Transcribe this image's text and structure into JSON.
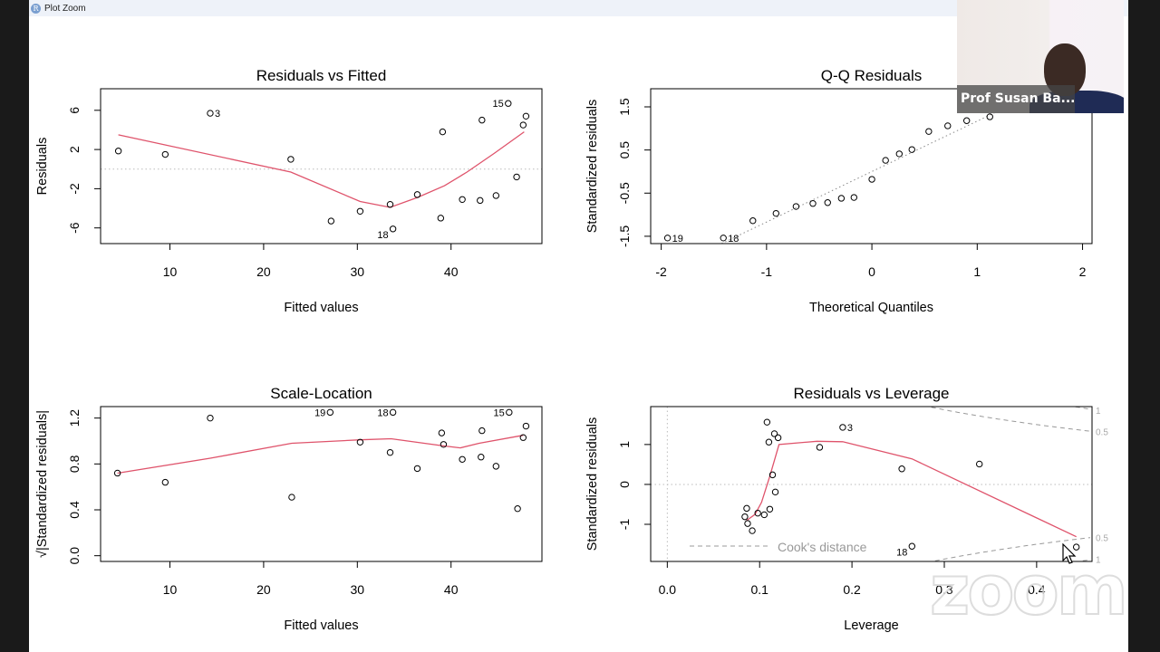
{
  "window": {
    "title": "Plot Zoom",
    "app_icon": "R-logo"
  },
  "video_overlay": {
    "participant_name": "Prof Susan Ba...",
    "watermark": "zoom"
  },
  "colors": {
    "points": "#000000",
    "smooth": "#df536b",
    "reference": "#999999",
    "cooks": "#999999"
  },
  "chart_data": [
    {
      "type": "scatter",
      "title": "Residuals vs Fitted",
      "xlabel": "Fitted values",
      "ylabel": "Residuals",
      "xlim": [
        2.6,
        49.7
      ],
      "ylim": [
        -7.6,
        8.2
      ],
      "xticks": [
        {
          "v": 10,
          "label": "10"
        },
        {
          "v": 20,
          "label": "20"
        },
        {
          "v": 30,
          "label": "30"
        },
        {
          "v": 40,
          "label": "40"
        }
      ],
      "yticks": [
        {
          "v": -6,
          "label": "-6"
        },
        {
          "v": -2,
          "label": "-2"
        },
        {
          "v": 2,
          "label": "2"
        },
        {
          "v": 6,
          "label": "6"
        }
      ],
      "points": [
        [
          4.5,
          1.85
        ],
        [
          9.5,
          1.5
        ],
        [
          14.3,
          5.7
        ],
        [
          22.9,
          1.0
        ],
        [
          27.2,
          -5.3
        ],
        [
          30.3,
          -4.3
        ],
        [
          33.5,
          -3.6
        ],
        [
          33.8,
          -6.1
        ],
        [
          36.4,
          -2.6
        ],
        [
          39.1,
          3.8
        ],
        [
          38.9,
          -5.0
        ],
        [
          41.2,
          -3.1
        ],
        [
          43.1,
          -3.2
        ],
        [
          43.3,
          5.0
        ],
        [
          44.8,
          -2.7
        ],
        [
          46.1,
          6.7
        ],
        [
          47.0,
          -0.8
        ],
        [
          47.7,
          4.5
        ],
        [
          48.0,
          5.4
        ]
      ],
      "point_labels": [
        {
          "x": 14.3,
          "y": 5.7,
          "label": "3",
          "side": "right"
        },
        {
          "x": 33.8,
          "y": -6.1,
          "label": "18",
          "side": "left"
        },
        {
          "x": 46.1,
          "y": 6.7,
          "label": "15",
          "side": "left"
        }
      ],
      "smooth": [
        [
          4.5,
          3.5
        ],
        [
          22.9,
          -0.3
        ],
        [
          30.3,
          -3.3
        ],
        [
          33.5,
          -3.9
        ],
        [
          36.4,
          -2.9
        ],
        [
          39.3,
          -1.7
        ],
        [
          41.7,
          -0.3
        ],
        [
          44.6,
          1.6
        ],
        [
          47.8,
          3.8
        ]
      ],
      "hline": 0
    },
    {
      "type": "scatter",
      "title": "Q-Q Residuals",
      "xlabel": "Theoretical Quantiles",
      "ylabel": "Standardized residuals",
      "xlim": [
        -2.1,
        2.09
      ],
      "ylim": [
        -1.67,
        1.92
      ],
      "xticks": [
        {
          "v": -2,
          "label": "-2"
        },
        {
          "v": -1,
          "label": "-1"
        },
        {
          "v": 0,
          "label": "0"
        },
        {
          "v": 1,
          "label": "1"
        },
        {
          "v": 2,
          "label": "2"
        }
      ],
      "yticks": [
        {
          "v": -1.5,
          "label": "-1.5"
        },
        {
          "v": -0.5,
          "label": "-0.5"
        },
        {
          "v": 0.5,
          "label": "0.5"
        },
        {
          "v": 1.5,
          "label": "1.5"
        }
      ],
      "points": [
        [
          -1.94,
          -1.54
        ],
        [
          -1.41,
          -1.54
        ],
        [
          -1.13,
          -1.14
        ],
        [
          -0.91,
          -0.97
        ],
        [
          -0.72,
          -0.81
        ],
        [
          -0.56,
          -0.74
        ],
        [
          -0.42,
          -0.72
        ],
        [
          -0.29,
          -0.62
        ],
        [
          -0.17,
          -0.6
        ],
        [
          0,
          -0.18
        ],
        [
          0.13,
          0.26
        ],
        [
          0.26,
          0.41
        ],
        [
          0.38,
          0.51
        ],
        [
          0.54,
          0.93
        ],
        [
          0.72,
          1.06
        ],
        [
          0.9,
          1.18
        ],
        [
          1.12,
          1.27
        ]
      ],
      "point_labels": [
        {
          "x": -1.94,
          "y": -1.54,
          "label": "19",
          "side": "right"
        },
        {
          "x": -1.41,
          "y": -1.54,
          "label": "18",
          "side": "right"
        }
      ],
      "qq_line": {
        "slope": 1.17,
        "intercept": 0.0
      }
    },
    {
      "type": "scatter",
      "title": "Scale-Location",
      "xlabel": "Fitted values",
      "ylabel": "√|Standardized residuals|",
      "xlim": [
        2.6,
        49.7
      ],
      "ylim": [
        -0.05,
        1.3
      ],
      "xticks": [
        {
          "v": 10,
          "label": "10"
        },
        {
          "v": 20,
          "label": "20"
        },
        {
          "v": 30,
          "label": "30"
        },
        {
          "v": 40,
          "label": "40"
        }
      ],
      "yticks": [
        {
          "v": 0,
          "label": "0.0"
        },
        {
          "v": 0.4,
          "label": "0.4"
        },
        {
          "v": 0.8,
          "label": "0.8"
        },
        {
          "v": 1.2,
          "label": "1.2"
        }
      ],
      "points": [
        [
          4.4,
          0.72
        ],
        [
          9.5,
          0.64
        ],
        [
          14.3,
          1.2
        ],
        [
          23.0,
          0.51
        ],
        [
          27.1,
          1.25
        ],
        [
          30.3,
          0.99
        ],
        [
          33.5,
          0.9
        ],
        [
          33.8,
          1.25
        ],
        [
          36.4,
          0.76
        ],
        [
          39.0,
          1.07
        ],
        [
          39.2,
          0.97
        ],
        [
          41.2,
          0.84
        ],
        [
          43.2,
          0.86
        ],
        [
          43.3,
          1.09
        ],
        [
          44.8,
          0.78
        ],
        [
          46.2,
          1.25
        ],
        [
          47.1,
          0.41
        ],
        [
          47.7,
          1.03
        ],
        [
          48.0,
          1.13
        ]
      ],
      "point_labels": [
        {
          "x": 27.1,
          "y": 1.25,
          "label": "19",
          "side": "left"
        },
        {
          "x": 33.8,
          "y": 1.25,
          "label": "18",
          "side": "left"
        },
        {
          "x": 46.2,
          "y": 1.25,
          "label": "15",
          "side": "left"
        }
      ],
      "smooth": [
        [
          4.4,
          0.72
        ],
        [
          14.3,
          0.85
        ],
        [
          23.0,
          0.98
        ],
        [
          30.3,
          1.01
        ],
        [
          33.6,
          1.02
        ],
        [
          39.0,
          0.96
        ],
        [
          41.0,
          0.94
        ],
        [
          43.0,
          0.98
        ],
        [
          47.7,
          1.05
        ]
      ]
    },
    {
      "type": "scatter",
      "title": "Residuals vs Leverage",
      "xlabel": "Leverage",
      "ylabel": "Standardized residuals",
      "xlim": [
        -0.018,
        0.46
      ],
      "ylim": [
        -1.93,
        1.95
      ],
      "xticks": [
        {
          "v": 0,
          "label": "0.0"
        },
        {
          "v": 0.1,
          "label": "0.1"
        },
        {
          "v": 0.2,
          "label": "0.2"
        },
        {
          "v": 0.3,
          "label": "0.3"
        },
        {
          "v": 0.4,
          "label": "0.4"
        }
      ],
      "yticks": [
        {
          "v": -1,
          "label": "-1"
        },
        {
          "v": 0,
          "label": "0"
        },
        {
          "v": 1,
          "label": "1"
        }
      ],
      "points": [
        [
          0.084,
          -0.81
        ],
        [
          0.086,
          -0.6
        ],
        [
          0.087,
          -0.98
        ],
        [
          0.092,
          -1.16
        ],
        [
          0.098,
          -0.72
        ],
        [
          0.105,
          -0.76
        ],
        [
          0.111,
          -0.62
        ],
        [
          0.108,
          1.56
        ],
        [
          0.11,
          1.06
        ],
        [
          0.116,
          1.27
        ],
        [
          0.12,
          1.17
        ],
        [
          0.114,
          0.24
        ],
        [
          0.117,
          -0.19
        ],
        [
          0.165,
          0.93
        ],
        [
          0.19,
          1.43
        ],
        [
          0.254,
          0.39
        ],
        [
          0.265,
          -1.55
        ],
        [
          0.338,
          0.51
        ],
        [
          0.443,
          -1.57
        ]
      ],
      "point_labels": [
        {
          "x": 0.19,
          "y": 1.43,
          "label": "3",
          "side": "right"
        },
        {
          "x": 0.265,
          "y": -1.55,
          "label": "18",
          "side": "left"
        }
      ],
      "smooth": [
        [
          0.086,
          -0.9
        ],
        [
          0.095,
          -0.75
        ],
        [
          0.102,
          -0.45
        ],
        [
          0.111,
          0.2
        ],
        [
          0.121,
          1.0
        ],
        [
          0.162,
          1.08
        ],
        [
          0.19,
          1.07
        ],
        [
          0.265,
          0.64
        ],
        [
          0.443,
          -1.31
        ]
      ],
      "hline": 0,
      "vline": 0,
      "cooks_levels": [
        {
          "v": 0.5,
          "label": "0.5"
        },
        {
          "v": 1,
          "label": "1"
        }
      ],
      "legend": {
        "label": "Cook's distance",
        "position": "bottom-left"
      }
    }
  ]
}
